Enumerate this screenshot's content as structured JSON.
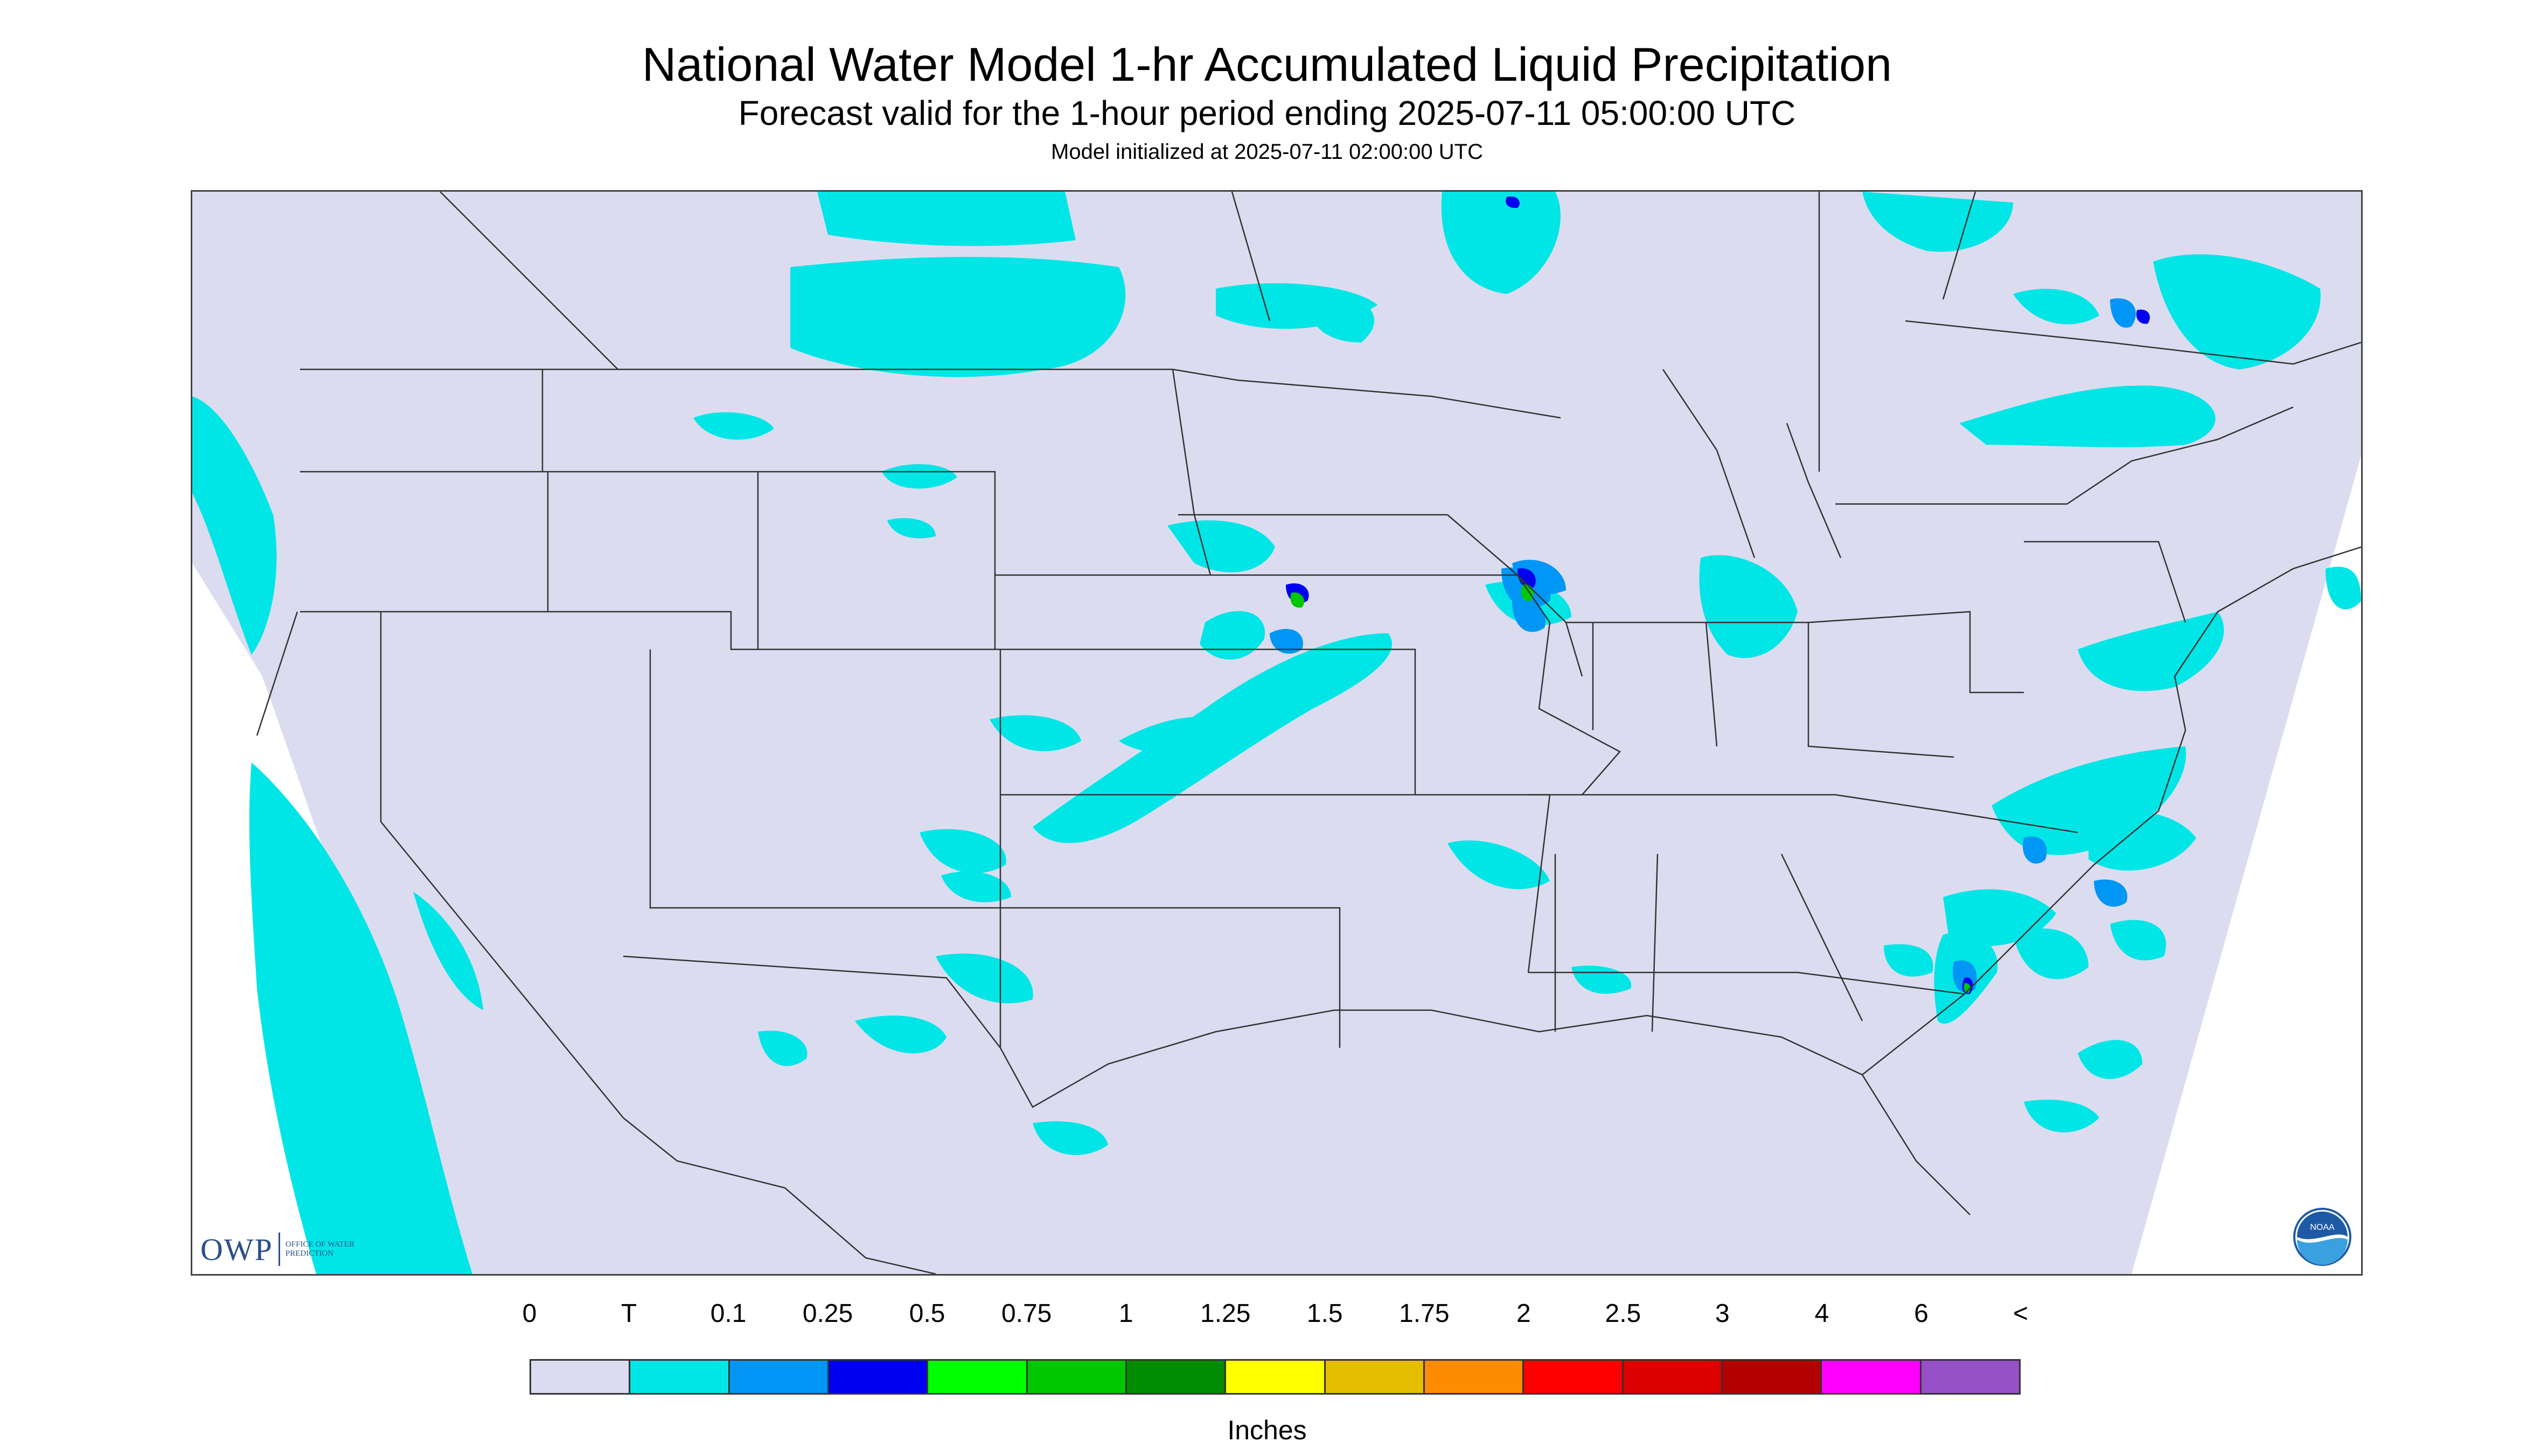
{
  "header": {
    "title": "National Water Model 1-hr Accumulated Liquid Precipitation",
    "subtitle": "Forecast valid for the 1-hour period ending 2025-07-11 05:00:00 UTC",
    "init_text": "Model initialized at 2025-07-11 02:00:00 UTC"
  },
  "logos": {
    "owp_text": "OWP",
    "owp_sub": "OFFICE OF WATER PREDICTION",
    "noaa_text": "NOAA"
  },
  "legend": {
    "labels": [
      "0",
      "T",
      "0.1",
      "0.25",
      "0.5",
      "0.75",
      "1",
      "1.25",
      "1.5",
      "1.75",
      "2",
      "2.5",
      "3",
      "4",
      "6",
      "<"
    ],
    "colors": [
      "#dcdcf0",
      "#00e6e6",
      "#0096f5",
      "#0000f0",
      "#00ff00",
      "#00c800",
      "#008c00",
      "#ffff00",
      "#e6be00",
      "#ff8c00",
      "#ff0000",
      "#dc0000",
      "#b40000",
      "#ff00ff",
      "#9650c8"
    ],
    "units": "Inches"
  },
  "map": {
    "colors": {
      "background": "#dcdcf0",
      "trace": "#00e6e6",
      "light": "#0096f5",
      "moderate": "#0000f0",
      "heavy_green": "#00c800",
      "boundary": "#333333"
    }
  }
}
